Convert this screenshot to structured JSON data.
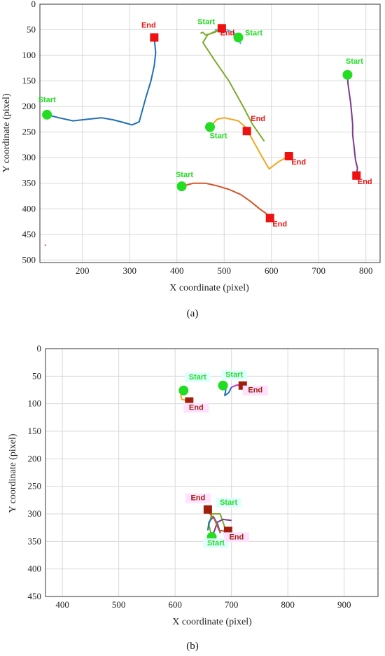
{
  "colors": {
    "start": "#22dd22",
    "end": "#ee1111",
    "end_b": "#a01e0c",
    "start_bg": "#dfffff",
    "end_bg": "#ffe2ff"
  },
  "chart_data": [
    {
      "id": "a",
      "type": "line",
      "caption": "(a)",
      "xlabel": "X coordinate (pixel)",
      "ylabel": "Y coordinate (pixel)",
      "xlim": [
        110,
        830
      ],
      "ylim": [
        0,
        505
      ],
      "y_reversed": true,
      "xticks": [
        200,
        300,
        400,
        500,
        600,
        700,
        800
      ],
      "yticks": [
        0,
        50,
        100,
        150,
        200,
        250,
        300,
        350,
        400,
        450,
        500
      ],
      "grid": true,
      "series": [
        {
          "color": "#1f6fb4",
          "points": [
            [
              125,
              216
            ],
            [
              150,
              222
            ],
            [
              180,
              228
            ],
            [
              210,
              225
            ],
            [
              240,
              222
            ],
            [
              265,
              226
            ],
            [
              290,
              232
            ],
            [
              305,
              236
            ],
            [
              320,
              230
            ],
            [
              335,
              180
            ],
            [
              345,
              150
            ],
            [
              352,
              120
            ],
            [
              355,
              95
            ],
            [
              352,
              65
            ]
          ]
        },
        {
          "color": "#7dab2e",
          "points": [
            [
              450,
              57
            ],
            [
              455,
              55
            ],
            [
              460,
              60
            ],
            [
              470,
              58
            ],
            [
              480,
              55
            ],
            [
              490,
              50
            ],
            [
              495,
              47
            ],
            [
              465,
              60
            ],
            [
              455,
              75
            ],
            [
              480,
              110
            ],
            [
              510,
              150
            ],
            [
              540,
              200
            ],
            [
              560,
              235
            ],
            [
              585,
              268
            ]
          ]
        },
        {
          "color": "#45b8e8",
          "points": [
            [
              480,
              50
            ],
            [
              500,
              48
            ],
            [
              520,
              55
            ],
            [
              530,
              65
            ],
            [
              535,
              78
            ]
          ]
        },
        {
          "color": "#f0a821",
          "points": [
            [
              470,
              240
            ],
            [
              485,
              225
            ],
            [
              500,
              222
            ],
            [
              515,
              225
            ],
            [
              530,
              228
            ],
            [
              545,
              240
            ],
            [
              560,
              265
            ],
            [
              575,
              290
            ],
            [
              595,
              322
            ],
            [
              615,
              308
            ],
            [
              637,
              297
            ]
          ]
        },
        {
          "color": "#d6542a",
          "points": [
            [
              410,
              356
            ],
            [
              435,
              350
            ],
            [
              460,
              350
            ],
            [
              485,
              355
            ],
            [
              510,
              362
            ],
            [
              535,
              372
            ],
            [
              555,
              385
            ],
            [
              575,
              400
            ],
            [
              590,
              410
            ],
            [
              597,
              418
            ]
          ]
        },
        {
          "color": "#7b3a8e",
          "points": [
            [
              761,
              138
            ],
            [
              762,
              155
            ],
            [
              765,
              175
            ],
            [
              768,
              195
            ],
            [
              770,
              215
            ],
            [
              772,
              235
            ],
            [
              772,
              255
            ],
            [
              775,
              280
            ],
            [
              778,
              305
            ],
            [
              782,
              320
            ],
            [
              780,
              335
            ]
          ]
        },
        {
          "color": "#d6542a",
          "points": [
            [
              121,
              470
            ],
            [
              122,
              472
            ]
          ]
        }
      ],
      "markers": [
        {
          "kind": "start",
          "x": 125,
          "y": 216,
          "label": "Start",
          "ldx": 0,
          "ldy": -18
        },
        {
          "kind": "end",
          "x": 352,
          "y": 65,
          "label": "End",
          "ldx": -8,
          "ldy": -14
        },
        {
          "kind": "start",
          "x": 530,
          "y": 65,
          "label": "Start",
          "ldx": 22,
          "ldy": -3
        },
        {
          "kind": "end",
          "x": 495,
          "y": 47,
          "label": "End",
          "ldx": 8,
          "ldy": 10
        },
        {
          "kind": "start",
          "x": 470,
          "y": 240,
          "label": "Start",
          "ldx": 12,
          "ldy": 16
        },
        {
          "kind": "end",
          "x": 548,
          "y": 248,
          "label": "End",
          "ldx": 16,
          "ldy": -14
        },
        {
          "kind": "start",
          "x": 410,
          "y": 356,
          "label": "Start",
          "ldx": 4,
          "ldy": -13
        },
        {
          "kind": "end",
          "x": 597,
          "y": 418,
          "label": "End",
          "ldx": 14,
          "ldy": 12
        },
        {
          "kind": "start",
          "x": 761,
          "y": 138,
          "label": "Start",
          "ldx": 10,
          "ldy": -16
        },
        {
          "kind": "end",
          "x": 780,
          "y": 335,
          "label": "End",
          "ldx": 12,
          "ldy": 12
        },
        {
          "kind": "end",
          "x": 637,
          "y": 297,
          "label": "End",
          "ldx": 14,
          "ldy": 12
        }
      ],
      "extra_labels": [
        {
          "kind": "start",
          "x": 468,
          "y": 47,
          "label": "Start",
          "ldx": -4,
          "ldy": -6
        }
      ]
    },
    {
      "id": "b",
      "type": "line",
      "caption": "(b)",
      "xlabel": "X coordinate (pixel)",
      "ylabel": "Y coordinate (pixel)",
      "xlim": [
        370,
        960
      ],
      "ylim": [
        0,
        450
      ],
      "y_reversed": true,
      "xticks": [
        400,
        500,
        600,
        700,
        800,
        900
      ],
      "yticks": [
        0,
        50,
        100,
        150,
        200,
        250,
        300,
        350,
        400,
        450
      ],
      "grid": true,
      "series": [
        {
          "color": "#f0a821",
          "points": [
            [
              615,
              76
            ],
            [
              610,
              85
            ],
            [
              612,
              92
            ],
            [
              625,
              95
            ]
          ]
        },
        {
          "color": "#1f6fb4",
          "points": [
            [
              685,
              67
            ],
            [
              690,
              75
            ],
            [
              688,
              85
            ],
            [
              695,
              80
            ],
            [
              700,
              70
            ]
          ]
        },
        {
          "color": "#c238c9",
          "points": [
            [
              700,
              70
            ],
            [
              710,
              66
            ],
            [
              720,
              67
            ]
          ]
        },
        {
          "color": "#7dab2e",
          "points": [
            [
              665,
              342
            ],
            [
              660,
              320
            ],
            [
              665,
              300
            ],
            [
              680,
              300
            ],
            [
              690,
              330
            ]
          ]
        },
        {
          "color": "#7b3a8e",
          "points": [
            [
              665,
              342
            ],
            [
              670,
              330
            ],
            [
              675,
              315
            ],
            [
              685,
              310
            ],
            [
              700,
              312
            ]
          ]
        },
        {
          "color": "#1f6fb4",
          "points": [
            [
              658,
              330
            ],
            [
              660,
              315
            ],
            [
              668,
              305
            ],
            [
              676,
              320
            ],
            [
              680,
              335
            ]
          ]
        },
        {
          "color": "#d6542a",
          "points": [
            [
              658,
              295
            ],
            [
              670,
              310
            ],
            [
              678,
              330
            ],
            [
              694,
              332
            ]
          ]
        }
      ],
      "markers": [
        {
          "kind": "start",
          "x": 615,
          "y": 76,
          "label": "Start",
          "ldx": 20,
          "ldy": -16
        },
        {
          "kind": "end",
          "x": 625,
          "y": 96,
          "label": "End",
          "ldx": 10,
          "ldy": 12
        },
        {
          "kind": "start",
          "x": 685,
          "y": 67,
          "label": "Start",
          "ldx": 16,
          "ldy": -12
        },
        {
          "kind": "end",
          "x": 720,
          "y": 67,
          "label": "End",
          "ldx": 18,
          "ldy": 10
        },
        {
          "kind": "end",
          "x": 658,
          "y": 292,
          "label": "End",
          "ldx": -14,
          "ldy": -13
        },
        {
          "kind": "start",
          "x": 665,
          "y": 342,
          "label": "Start",
          "ldx": 6,
          "ldy": 12
        },
        {
          "kind": "end",
          "x": 694,
          "y": 331,
          "label": "End",
          "ldx": 12,
          "ldy": 12
        }
      ],
      "extra_labels": [
        {
          "kind": "start",
          "x": 690,
          "y": 296,
          "label": "Start",
          "ldx": 4,
          "ldy": -10
        }
      ]
    }
  ]
}
